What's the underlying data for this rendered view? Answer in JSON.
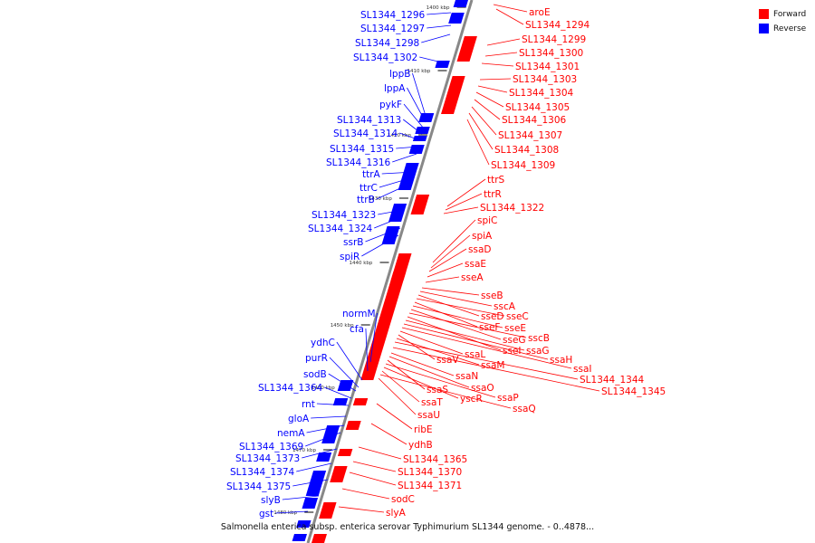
{
  "legend": {
    "forward_label": "Forward",
    "reverse_label": "Reverse",
    "forward_color": "#ff0000",
    "reverse_color": "#0000ff"
  },
  "caption": "Salmonella enterica subsp. enterica serovar Typhimurium SL1344 genome. - 0..4878...",
  "ticks": [
    "1400 kbp",
    "1410 kbp",
    "1420 kbp",
    "1430 kbp",
    "1440 kbp",
    "1450 kbp",
    "1460 kbp",
    "1470 kbp",
    "1480 kbp"
  ],
  "reverse_labels": [
    "SL1344_1296",
    "SL1344_1297",
    "SL1344_1298",
    "SL1344_1302",
    "lppB",
    "lppA",
    "pykF",
    "SL1344_1313",
    "SL1344_1314",
    "SL1344_1315",
    "SL1344_1316",
    "ttrA",
    "ttrC",
    "ttrB",
    "SL1344_1323",
    "SL1344_1324",
    "ssrB",
    "spiR",
    "normM",
    "cfa",
    "ydhC",
    "purR",
    "sodB",
    "SL1344_1364",
    "rnt",
    "gloA",
    "nemA",
    "SL1344_1369",
    "SL1344_1373",
    "SL1344_1374",
    "SL1344_1375",
    "slyB",
    "gst"
  ],
  "forward_labels": [
    "aroE",
    "SL1344_1294",
    "SL1344_1299",
    "SL1344_1300",
    "SL1344_1301",
    "SL1344_1303",
    "SL1344_1304",
    "SL1344_1305",
    "SL1344_1306",
    "SL1344_1307",
    "SL1344_1308",
    "SL1344_1309",
    "ttrS",
    "ttrR",
    "SL1344_1322",
    "spiC",
    "spiA",
    "ssaD",
    "ssaE",
    "sseA",
    "sseB",
    "sscA",
    "sseD",
    "sseC",
    "sseF",
    "sseE",
    "sseG",
    "sscB",
    "sseI",
    "ssaG",
    "ssaH",
    "ssaI",
    "ssaL",
    "ssaV",
    "ssaM",
    "SL1344_1344",
    "SL1344_1345",
    "ssaN",
    "ssaO",
    "ssaS",
    "ssaP",
    "yscR",
    "ssaT",
    "ssaQ",
    "ssaU",
    "ribE",
    "ydhB",
    "SL1344_1365",
    "SL1344_1370",
    "SL1344_1371",
    "sodC",
    "slyA"
  ]
}
